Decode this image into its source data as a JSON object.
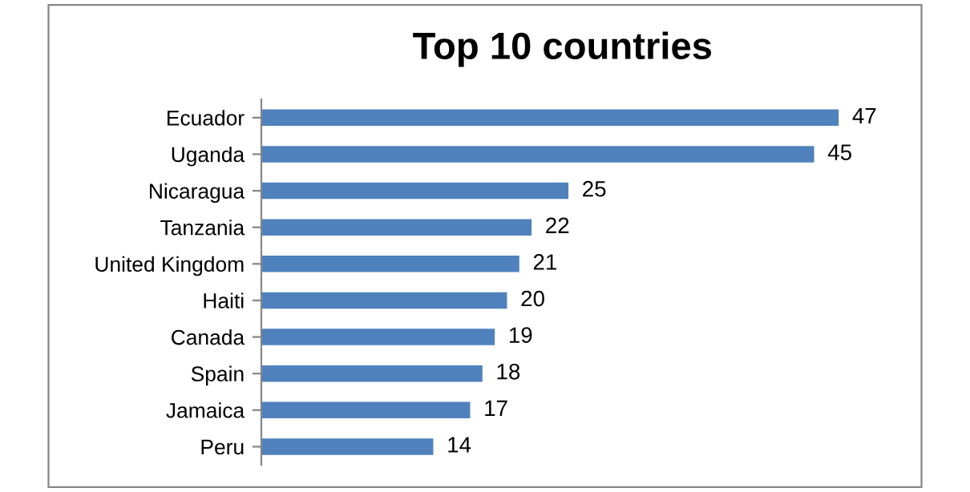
{
  "chart_data": {
    "type": "bar",
    "orientation": "horizontal",
    "title": "Top 10 countries",
    "categories": [
      "Ecuador",
      "Uganda",
      "Nicaragua",
      "Tanzania",
      "United Kingdom",
      "Haiti",
      "Canada",
      "Spain",
      "Jamaica",
      "Peru"
    ],
    "values": [
      47,
      45,
      25,
      22,
      21,
      20,
      19,
      18,
      17,
      14
    ],
    "color": "#4f81bd",
    "data_labels": true,
    "tick_labels": "y"
  }
}
